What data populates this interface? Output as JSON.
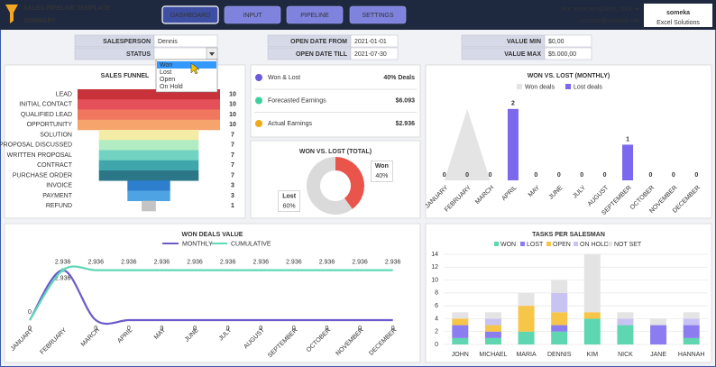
{
  "header": {
    "template": "SALES PIPELINE TEMPLATE",
    "title": "SUMMARY",
    "tabs": [
      "DASHBOARD",
      "INPUT",
      "PIPELINE",
      "SETTINGS"
    ],
    "active_tab": 0,
    "promo": "For more templates, click ➜",
    "contact": "contact@someka.net",
    "brand": "someka",
    "brand_sub": "Excel Solutions"
  },
  "filters": {
    "salesperson": {
      "label": "SALESPERSON",
      "value": "Dennis"
    },
    "status": {
      "label": "STATUS",
      "options": [
        "Won",
        "Lost",
        "Open",
        "On Hold"
      ],
      "highlighted": 0
    },
    "open_from": {
      "label": "OPEN DATE FROM",
      "value": "2021-01-01"
    },
    "open_till": {
      "label": "OPEN DATE TILL",
      "value": "2021-07-30"
    },
    "value_min": {
      "label": "VALUE MIN",
      "value": "$0,00"
    },
    "value_max": {
      "label": "VALUE MAX",
      "value": "$5.000,00"
    }
  },
  "kpis": [
    {
      "label": "Won & Lost",
      "value": "40% Deals",
      "color": "#6a5ae0"
    },
    {
      "label": "Forecasted Earnings",
      "value": "$6.093",
      "color": "#3fcf9f"
    },
    {
      "label": "Actual Earnings",
      "value": "$2.936",
      "color": "#efaa1c"
    }
  ],
  "chart_data": [
    {
      "type": "funnel",
      "title": "SALES FUNNEL",
      "categories": [
        "LEAD",
        "INITIAL CONTACT",
        "QUALIFIED LEAD",
        "OPPORTUNITY",
        "SOLUTION",
        "PROPOSAL DISCUSSED",
        "WRITTEN PROPOSAL",
        "CONTRACT",
        "PURCHASE ORDER",
        "INVOICE",
        "PAYMENT",
        "REFUND"
      ],
      "values": [
        10,
        10,
        10,
        10,
        7,
        7,
        7,
        7,
        7,
        3,
        3,
        1
      ],
      "colors": [
        "#c8323a",
        "#e4505a",
        "#f0775e",
        "#f6a46c",
        "#f4eca6",
        "#b2ecc2",
        "#72d3c3",
        "#3fa7ab",
        "#2b7788",
        "#2d7fce",
        "#4ea3e2",
        "#c4c4c4"
      ]
    },
    {
      "type": "pie",
      "title": "WON VS. LOST (TOTAL)",
      "categories": [
        "Won",
        "Lost"
      ],
      "values": [
        40,
        60
      ],
      "value_labels": [
        "40%",
        "60%"
      ],
      "colors": [
        "#e9544b",
        "#dadada"
      ],
      "label_colors": [
        "#d63a32",
        "#333333"
      ]
    },
    {
      "type": "bar",
      "title": "WON VS. LOST (MONTHLY)",
      "categories": [
        "JANUARY",
        "FEBRUARY",
        "MARCH",
        "APRIL",
        "MAY",
        "JUNE",
        "JULY",
        "AUGUST",
        "SEPTEMBER",
        "OCTOBER",
        "NOVEMBER",
        "DECEMBER"
      ],
      "series": [
        {
          "name": "Won deals",
          "color": "#e4e4e4",
          "style": "area",
          "values": [
            0,
            2,
            0,
            0,
            0,
            0,
            0,
            0,
            0,
            0,
            0,
            0
          ]
        },
        {
          "name": "Lost deals",
          "color": "#7b68ee",
          "style": "bar",
          "values": [
            0,
            0,
            0,
            2,
            0,
            0,
            0,
            0,
            1,
            0,
            0,
            0
          ]
        }
      ],
      "ylim": [
        0,
        2.4
      ]
    },
    {
      "type": "line",
      "title": "WON DEALS VALUE",
      "categories": [
        "JANUARY",
        "FEBRUARY",
        "MARCH",
        "APRIL",
        "MAY",
        "JUNE",
        "JULY",
        "AUGUST",
        "SEPTEMBER",
        "OCTOBER",
        "NOVEMBER",
        "DECEMBER"
      ],
      "series": [
        {
          "name": "MONTHLY",
          "color": "#6a5acd",
          "values": [
            0,
            2936,
            0,
            0,
            0,
            0,
            0,
            0,
            0,
            0,
            0,
            0
          ],
          "value_labels": [
            "0",
            "2.936",
            "0",
            "0",
            "0",
            "0",
            "0",
            "0",
            "0",
            "0",
            "0",
            "0"
          ]
        },
        {
          "name": "CUMULATIVE",
          "color": "#5fd8b5",
          "values": [
            0,
            2936,
            2936,
            2936,
            2936,
            2936,
            2936,
            2936,
            2936,
            2936,
            2936,
            2936
          ],
          "value_labels": [
            "0",
            "2.936",
            "2.936",
            "2.936",
            "2.936",
            "2.936",
            "2.936",
            "2.936",
            "2.936",
            "2.936",
            "2.936",
            "2.936"
          ]
        }
      ],
      "ylim": [
        0,
        3500
      ]
    },
    {
      "type": "stacked_bar",
      "title": "TASKS PER SALESMAN",
      "categories": [
        "JOHN",
        "MICHAEL",
        "MARIA",
        "DENNIS",
        "KIM",
        "NICK",
        "JANE",
        "HANNAH"
      ],
      "series": [
        {
          "name": "WON",
          "color": "#5ed6b0",
          "values": [
            1,
            1,
            2,
            2,
            4,
            3,
            0,
            1
          ]
        },
        {
          "name": "LOST",
          "color": "#8b7cf0",
          "values": [
            2,
            1,
            0,
            1,
            0,
            0,
            3,
            2
          ]
        },
        {
          "name": "OPEN",
          "color": "#f7c547",
          "values": [
            1,
            1,
            4,
            2,
            1,
            0,
            0,
            0
          ]
        },
        {
          "name": "ON HOLD",
          "color": "#c9c3f3",
          "values": [
            0,
            1,
            0,
            3,
            0,
            1,
            0,
            1
          ]
        },
        {
          "name": "NOT SET",
          "color": "#e4e4e4",
          "values": [
            1,
            1,
            2,
            2,
            9,
            1,
            1,
            1
          ]
        }
      ],
      "ylim": [
        0,
        14
      ],
      "yticks": [
        0,
        2,
        4,
        6,
        8,
        10,
        12,
        14
      ],
      "grid": true
    }
  ]
}
